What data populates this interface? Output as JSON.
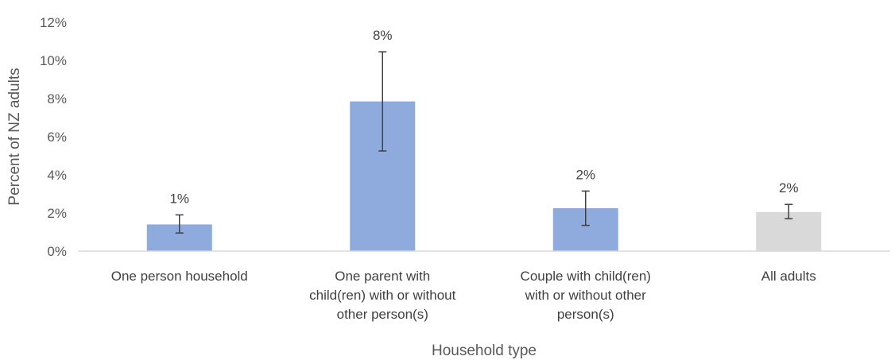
{
  "chart_data": {
    "type": "bar",
    "xlabel": "Household type",
    "ylabel": "Percent of NZ adults",
    "ylim": [
      0,
      12
    ],
    "yticks": [
      0,
      2,
      4,
      6,
      8,
      10,
      12
    ],
    "ytick_labels": [
      "0%",
      "2%",
      "4%",
      "6%",
      "8%",
      "10%",
      "12%"
    ],
    "grid": false,
    "legend": "none",
    "categories": [
      [
        "One person household"
      ],
      [
        "One parent with",
        "child(ren) with or without",
        "other person(s)"
      ],
      [
        "Couple with child(ren)",
        "with or without other",
        "person(s)"
      ],
      [
        "All adults"
      ]
    ],
    "values": [
      1.4,
      7.85,
      2.25,
      2.05
    ],
    "error_low": [
      0.95,
      5.25,
      1.35,
      1.7
    ],
    "error_high": [
      1.9,
      10.45,
      3.15,
      2.45
    ],
    "data_labels": [
      "1%",
      "8%",
      "2%",
      "2%"
    ],
    "colors": [
      "#8faadc",
      "#8faadc",
      "#8faadc",
      "#d9d9d9"
    ],
    "error_color": "#404040",
    "axis_color": "#d9d9d9"
  }
}
